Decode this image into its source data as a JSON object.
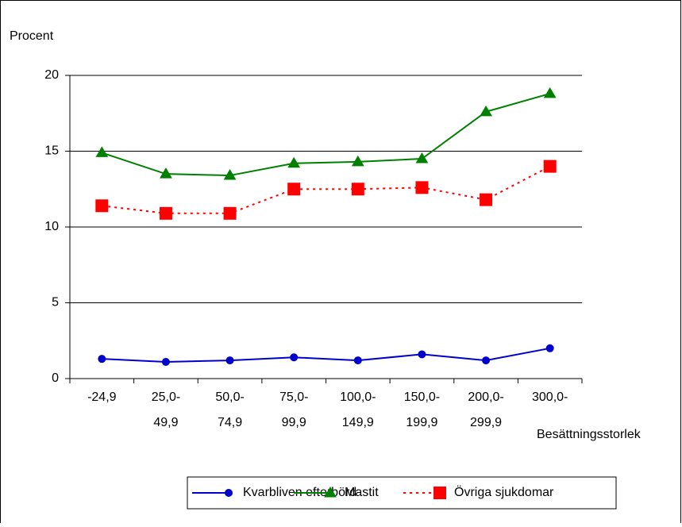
{
  "chart_data": {
    "type": "line",
    "y_label": "Procent",
    "x_label": "Besättningsstorlek",
    "categories": [
      [
        "-24,9"
      ],
      [
        "25,0-",
        "49,9"
      ],
      [
        "50,0-",
        "74,9"
      ],
      [
        "75,0-",
        "99,9"
      ],
      [
        "100,0-",
        "149,9"
      ],
      [
        "150,0-",
        "199,9"
      ],
      [
        "200,0-",
        "299,9"
      ],
      [
        "300,0-"
      ]
    ],
    "series": [
      {
        "name": "Kvarbliven efterbörd",
        "color": "#0000cc",
        "marker": "circle",
        "dash": false,
        "values": [
          1.3,
          1.1,
          1.2,
          1.4,
          1.2,
          1.6,
          1.2,
          2.0
        ]
      },
      {
        "name": "Mastit",
        "color": "#008000",
        "marker": "triangle",
        "dash": false,
        "values": [
          14.9,
          13.5,
          13.4,
          14.2,
          14.3,
          14.5,
          17.6,
          18.8
        ]
      },
      {
        "name": "Övriga sjukdomar",
        "color": "#ff0000",
        "marker": "square",
        "dash": true,
        "values": [
          11.4,
          10.9,
          10.9,
          12.5,
          12.5,
          12.6,
          11.8,
          14.0
        ]
      }
    ],
    "ylim": [
      0,
      20
    ],
    "yticks": [
      0,
      5,
      10,
      15,
      20
    ],
    "grid": true
  }
}
